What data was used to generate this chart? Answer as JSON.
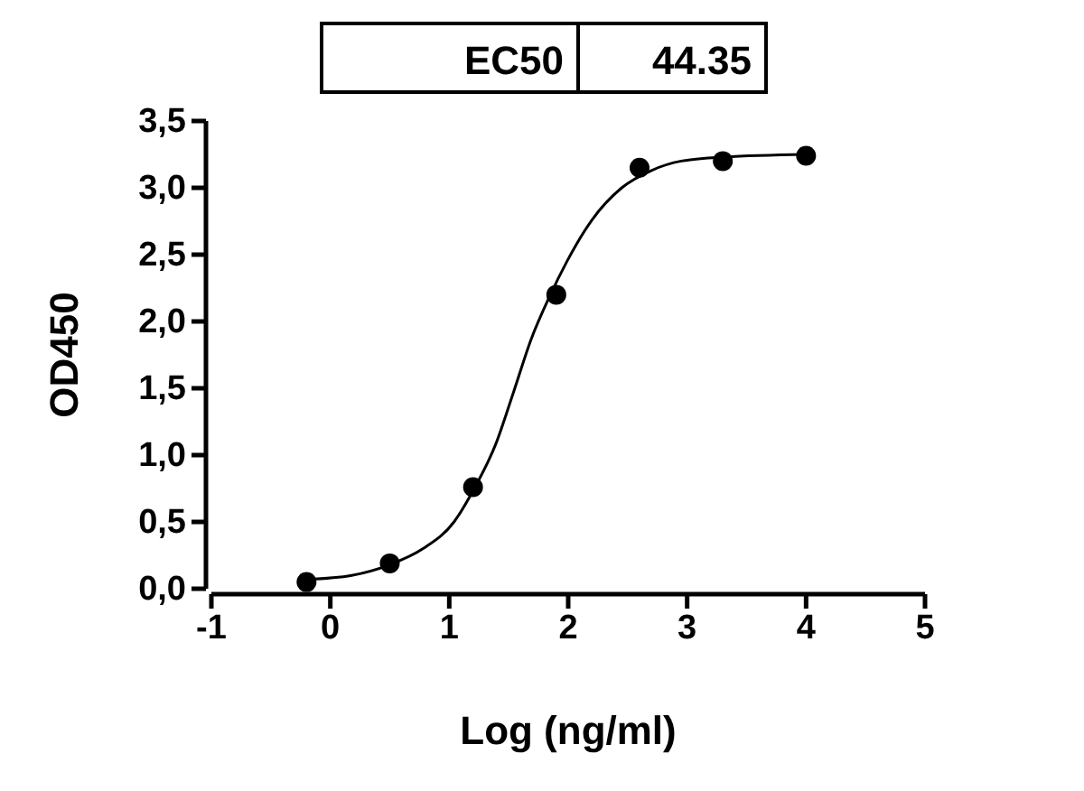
{
  "chart_data": {
    "type": "scatter",
    "xlabel": "Log (ng/ml)",
    "ylabel": "OD450",
    "annotations": [
      "EC50",
      "44.35"
    ],
    "xlim": [
      -1,
      5
    ],
    "xticks": [
      -1,
      0,
      1,
      2,
      3,
      4,
      5
    ],
    "ylim": [
      0,
      3.5
    ],
    "yticks": [
      {
        "value": 0,
        "label": "0,0"
      },
      {
        "value": 0.5,
        "label": "0,5"
      },
      {
        "value": 1,
        "label": "1,0"
      },
      {
        "value": 1.5,
        "label": "1,5"
      },
      {
        "value": 2,
        "label": "2,0"
      },
      {
        "value": 2.5,
        "label": "2,5"
      },
      {
        "value": 3,
        "label": "3,0"
      },
      {
        "value": 3.5,
        "label": "3,5"
      }
    ],
    "grid": false,
    "series": [
      {
        "marker": "circle",
        "color": "#000000",
        "x": [
          -0.2,
          0.5,
          1.2,
          1.9,
          2.6,
          3.3,
          4.0
        ],
        "values": [
          0.05,
          0.19,
          0.76,
          2.2,
          3.15,
          3.2,
          3.24
        ]
      },
      {
        "type": "line",
        "line_style": "solid",
        "color": "#000000",
        "x": [
          -0.2,
          0.18,
          0.5,
          0.78,
          1.04,
          1.21,
          1.39,
          1.54,
          1.69,
          1.84,
          1.99,
          2.2,
          2.45,
          2.7,
          2.95,
          3.31,
          4.0
        ],
        "values": [
          0.07,
          0.1,
          0.18,
          0.3,
          0.5,
          0.75,
          1.08,
          1.47,
          1.87,
          2.18,
          2.45,
          2.76,
          3.0,
          3.13,
          3.2,
          3.23,
          3.25
        ]
      }
    ]
  }
}
